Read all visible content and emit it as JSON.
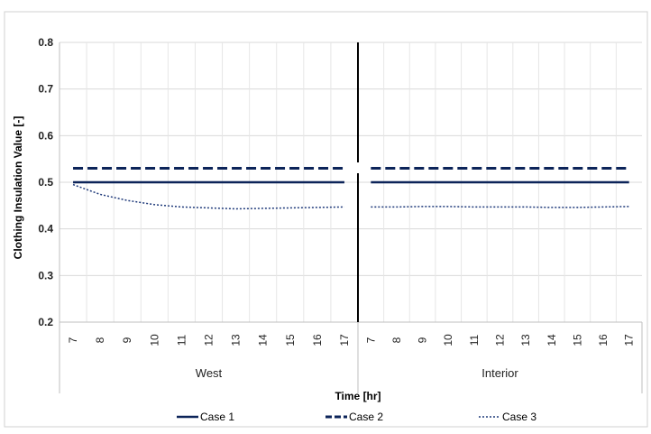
{
  "chart_data": {
    "type": "line",
    "xlabel": "Time [hr]",
    "ylabel": "Clothing Insulation Value [-]",
    "ylim": [
      0.2,
      0.8
    ],
    "yticks": [
      "0.2",
      "0.3",
      "0.4",
      "0.5",
      "0.6",
      "0.7",
      "0.8"
    ],
    "grid": true,
    "legend_position": "bottom",
    "panels": [
      {
        "label": "West",
        "x": [
          7,
          8,
          9,
          10,
          11,
          12,
          13,
          14,
          15,
          16,
          17
        ],
        "x_labels": [
          "7",
          "8",
          "9",
          "10",
          "11",
          "12",
          "13",
          "14",
          "15",
          "16",
          "17"
        ]
      },
      {
        "label": "Interior",
        "x": [
          7,
          8,
          9,
          10,
          11,
          12,
          13,
          14,
          15,
          16,
          17
        ],
        "x_labels": [
          "7",
          "8",
          "9",
          "10",
          "11",
          "12",
          "13",
          "14",
          "15",
          "16",
          "17"
        ]
      }
    ],
    "series": [
      {
        "name": "Case 1",
        "style": "solid",
        "color": "#0c2459",
        "values": {
          "West": [
            0.5,
            0.5,
            0.5,
            0.5,
            0.5,
            0.5,
            0.5,
            0.5,
            0.5,
            0.5,
            0.5
          ],
          "Interior": [
            0.5,
            0.5,
            0.5,
            0.5,
            0.5,
            0.5,
            0.5,
            0.5,
            0.5,
            0.5,
            0.5
          ]
        }
      },
      {
        "name": "Case 2",
        "style": "dashed",
        "color": "#0c2459",
        "values": {
          "West": [
            0.53,
            0.53,
            0.53,
            0.53,
            0.53,
            0.53,
            0.53,
            0.53,
            0.53,
            0.53,
            0.53
          ],
          "Interior": [
            0.53,
            0.53,
            0.53,
            0.53,
            0.53,
            0.53,
            0.53,
            0.53,
            0.53,
            0.53,
            0.53
          ]
        }
      },
      {
        "name": "Case 3",
        "style": "dotted",
        "color": "#1f3a7a",
        "values": {
          "West": [
            0.495,
            0.474,
            0.461,
            0.452,
            0.447,
            0.445,
            0.443,
            0.444,
            0.445,
            0.446,
            0.447
          ],
          "Interior": [
            0.447,
            0.447,
            0.448,
            0.448,
            0.447,
            0.447,
            0.447,
            0.446,
            0.446,
            0.447,
            0.448
          ]
        }
      }
    ]
  }
}
